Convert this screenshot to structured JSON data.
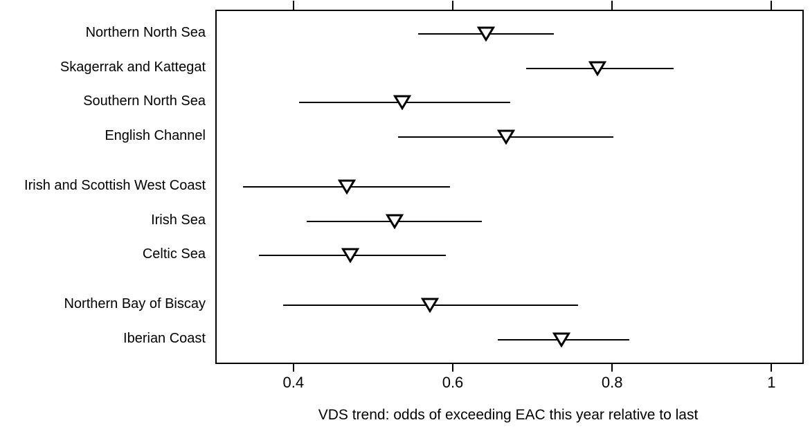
{
  "chart_data": {
    "type": "scatter",
    "subtype": "horizontal-error-bar-dot-plot",
    "marker": "open-down-triangle",
    "title": "",
    "xlabel": "VDS trend: odds of exceeding EAC this year relative to last",
    "ylabel": "",
    "xlim": [
      0.302,
      1.037
    ],
    "xticks": [
      0.4,
      0.6,
      0.8,
      1
    ],
    "xtick_labels": [
      "0.4",
      "0.6",
      "0.8",
      "1"
    ],
    "grid": false,
    "legend": false,
    "colors": {
      "line": "#000000",
      "marker_fill": "#ffffff",
      "marker_stroke": "#000000",
      "background": "#ffffff",
      "text": "#000000"
    },
    "rows": [
      {
        "label": "Northern North Sea",
        "group": 1,
        "estimate": 0.64,
        "ci_low": 0.555,
        "ci_high": 0.725
      },
      {
        "label": "Skagerrak and Kattegat",
        "group": 1,
        "estimate": 0.78,
        "ci_low": 0.69,
        "ci_high": 0.875
      },
      {
        "label": "Southern North Sea",
        "group": 1,
        "estimate": 0.535,
        "ci_low": 0.405,
        "ci_high": 0.67
      },
      {
        "label": "English Channel",
        "group": 1,
        "estimate": 0.665,
        "ci_low": 0.53,
        "ci_high": 0.8
      },
      {
        "label": "Irish and Scottish West Coast",
        "group": 2,
        "estimate": 0.465,
        "ci_low": 0.335,
        "ci_high": 0.595
      },
      {
        "label": "Irish Sea",
        "group": 2,
        "estimate": 0.525,
        "ci_low": 0.415,
        "ci_high": 0.635
      },
      {
        "label": "Celtic Sea",
        "group": 2,
        "estimate": 0.47,
        "ci_low": 0.355,
        "ci_high": 0.59
      },
      {
        "label": "Northern Bay of Biscay",
        "group": 3,
        "estimate": 0.57,
        "ci_low": 0.385,
        "ci_high": 0.755
      },
      {
        "label": "Iberian Coast",
        "group": 3,
        "estimate": 0.735,
        "ci_low": 0.655,
        "ci_high": 0.82
      }
    ]
  }
}
